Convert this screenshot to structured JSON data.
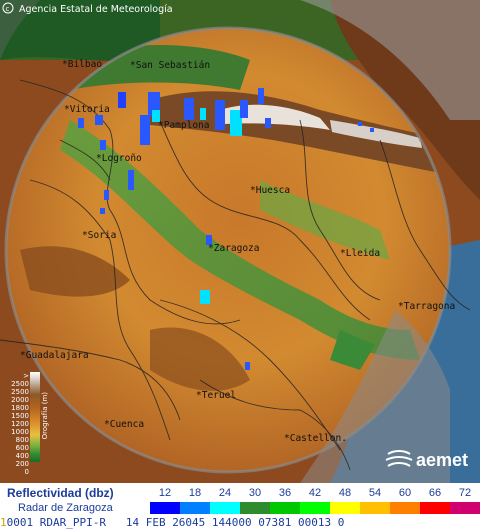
{
  "header": {
    "agency": "Agencia Estatal de Meteorología"
  },
  "cities": [
    {
      "name": "Bilbao"
    },
    {
      "name": "San Sebastián"
    },
    {
      "name": "Vitoria"
    },
    {
      "name": "Pamplona"
    },
    {
      "name": "Logroño"
    },
    {
      "name": "Huesca"
    },
    {
      "name": "Soria"
    },
    {
      "name": "Zaragoza"
    },
    {
      "name": "Lleida"
    },
    {
      "name": "Tarragona"
    },
    {
      "name": "Guadalajara"
    },
    {
      "name": "Teruel"
    },
    {
      "name": "Cuenca"
    },
    {
      "name": "Castellon."
    }
  ],
  "orography": {
    "title": "Orografía (m)",
    "ticks": [
      "> 2500",
      "2500",
      "2000",
      "1800",
      "1500",
      "1200",
      "1000",
      "800",
      "600",
      "400",
      "200",
      "0"
    ]
  },
  "logo": {
    "text": "aemet"
  },
  "legend": {
    "title": "Reflectividad (dbz)",
    "subtitle": "Radar de Zaragoza",
    "levels": [
      {
        "value": "12",
        "color": "#0000ff"
      },
      {
        "value": "18",
        "color": "#0080ff"
      },
      {
        "value": "24",
        "color": "#00ffff"
      },
      {
        "value": "30",
        "color": "#2e8b2e"
      },
      {
        "value": "36",
        "color": "#00c800"
      },
      {
        "value": "42",
        "color": "#00ff00"
      },
      {
        "value": "48",
        "color": "#ffff00"
      },
      {
        "value": "54",
        "color": "#ffc000"
      },
      {
        "value": "60",
        "color": "#ff8000"
      },
      {
        "value": "66",
        "color": "#ff0000"
      },
      {
        "value": "72",
        "color": "#d00070"
      }
    ]
  },
  "footer": {
    "lead": "1",
    "text": "0001 RDAR_PPI-R   14 FEB 26045 144000 07381 00013 0"
  }
}
